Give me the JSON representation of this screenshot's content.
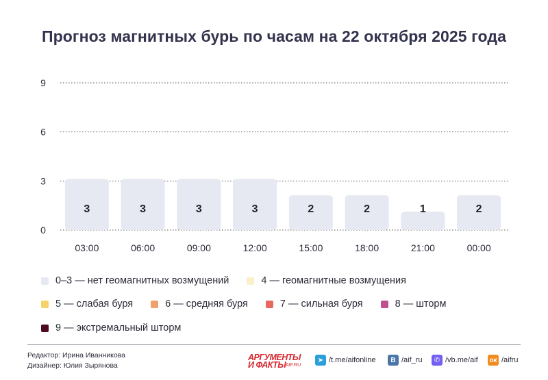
{
  "title": "Прогноз магнитных бурь по часам на 22 октября 2025 года",
  "chart_data": {
    "type": "bar",
    "title": "Прогноз магнитных бурь по часам на 22 октября 2025 года",
    "xlabel": "",
    "ylabel": "",
    "categories": [
      "03:00",
      "06:00",
      "09:00",
      "12:00",
      "15:00",
      "18:00",
      "21:00",
      "00:00"
    ],
    "values": [
      3,
      3,
      3,
      3,
      2,
      2,
      1,
      2
    ],
    "value_labels": [
      "3",
      "3",
      "3",
      "3",
      "2",
      "2",
      "1",
      "2"
    ],
    "ylim": [
      0,
      9
    ],
    "yticks": [
      "0",
      "3",
      "6",
      "9"
    ],
    "grid": true,
    "bar_color": "#e6e8f2"
  },
  "legend": [
    {
      "label": "0–3 — нет геомагнитных возмущений",
      "color": "#e6e8f2"
    },
    {
      "label": "4 — геомагнитные возмущения",
      "color": "#fbf0cc"
    },
    {
      "label": "5 — слабая буря",
      "color": "#f6d36a"
    },
    {
      "label": "6 — средняя буря",
      "color": "#f2a06b"
    },
    {
      "label": "7 — сильная буря",
      "color": "#e8675f"
    },
    {
      "label": "8 — шторм",
      "color": "#c24f8f"
    },
    {
      "label": "9 — экстремальный шторм",
      "color": "#4e0b1f"
    }
  ],
  "footer": {
    "editor": "Редактор: Ирина Иванникова",
    "designer": "Дизайнер: Юлия Зырянова",
    "logo_top": "АРГУМЕНТЫ",
    "logo_bottom": "И ФАКТЫ",
    "logo_site": "AIF.RU",
    "social": [
      {
        "icon": "telegram-icon",
        "glyph": "➤",
        "color": "#2aa0da",
        "text": "/t.me/aifonline"
      },
      {
        "icon": "vk-icon",
        "glyph": "В",
        "color": "#4a76a8",
        "text": "/aif_ru"
      },
      {
        "icon": "viber-icon",
        "glyph": "✆",
        "color": "#7360f2",
        "text": "/vb.me/aif"
      },
      {
        "icon": "odnoklassniki-icon",
        "glyph": "ок",
        "color": "#f08c1f",
        "text": "/aifru"
      }
    ]
  }
}
